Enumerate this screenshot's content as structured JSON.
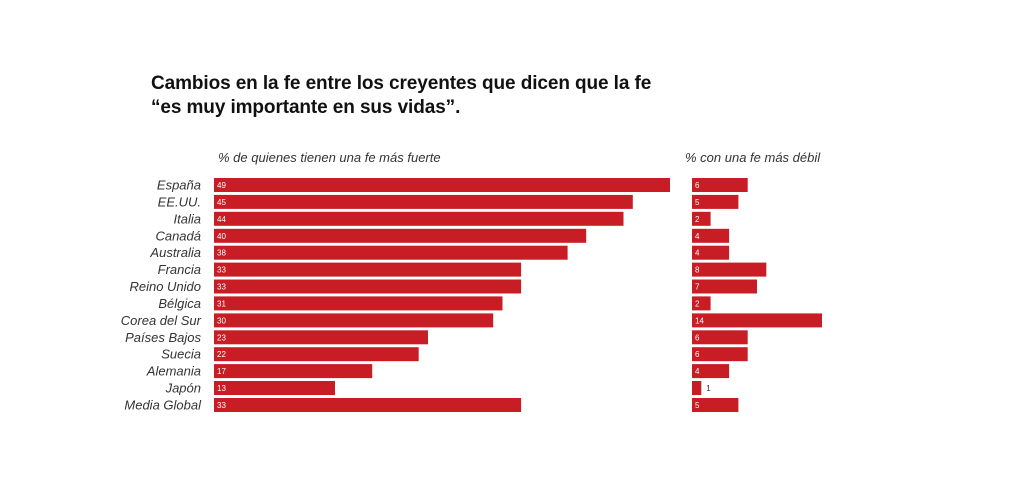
{
  "title_line1": "Cambios en la fe entre los creyentes que dicen que la fe",
  "title_line2": "“es muy importante en sus vidas”.",
  "bar_color": "#c81d25",
  "chart_data": [
    {
      "type": "bar",
      "orientation": "horizontal",
      "title": "% de quienes tienen una fe más fuerte",
      "categories": [
        "España",
        "EE.UU.",
        "Italia",
        "Canadá",
        "Australia",
        "Francia",
        "Reino Unido",
        "Bélgica",
        "Corea del Sur",
        "Países Bajos",
        "Suecia",
        "Alemania",
        "Japón",
        "Media Global"
      ],
      "values": [
        49,
        45,
        44,
        40,
        38,
        33,
        33,
        31,
        30,
        23,
        22,
        17,
        13,
        33
      ],
      "xlim": [
        0,
        49
      ]
    },
    {
      "type": "bar",
      "orientation": "horizontal",
      "title": "% con una fe más débil",
      "categories": [
        "España",
        "EE.UU.",
        "Italia",
        "Canadá",
        "Australia",
        "Francia",
        "Reino Unido",
        "Bélgica",
        "Corea del Sur",
        "Países Bajos",
        "Suecia",
        "Alemania",
        "Japón",
        "Media Global"
      ],
      "values": [
        6,
        5,
        2,
        4,
        4,
        8,
        7,
        2,
        14,
        6,
        6,
        4,
        1,
        5
      ],
      "xlim": [
        0,
        14
      ]
    }
  ]
}
